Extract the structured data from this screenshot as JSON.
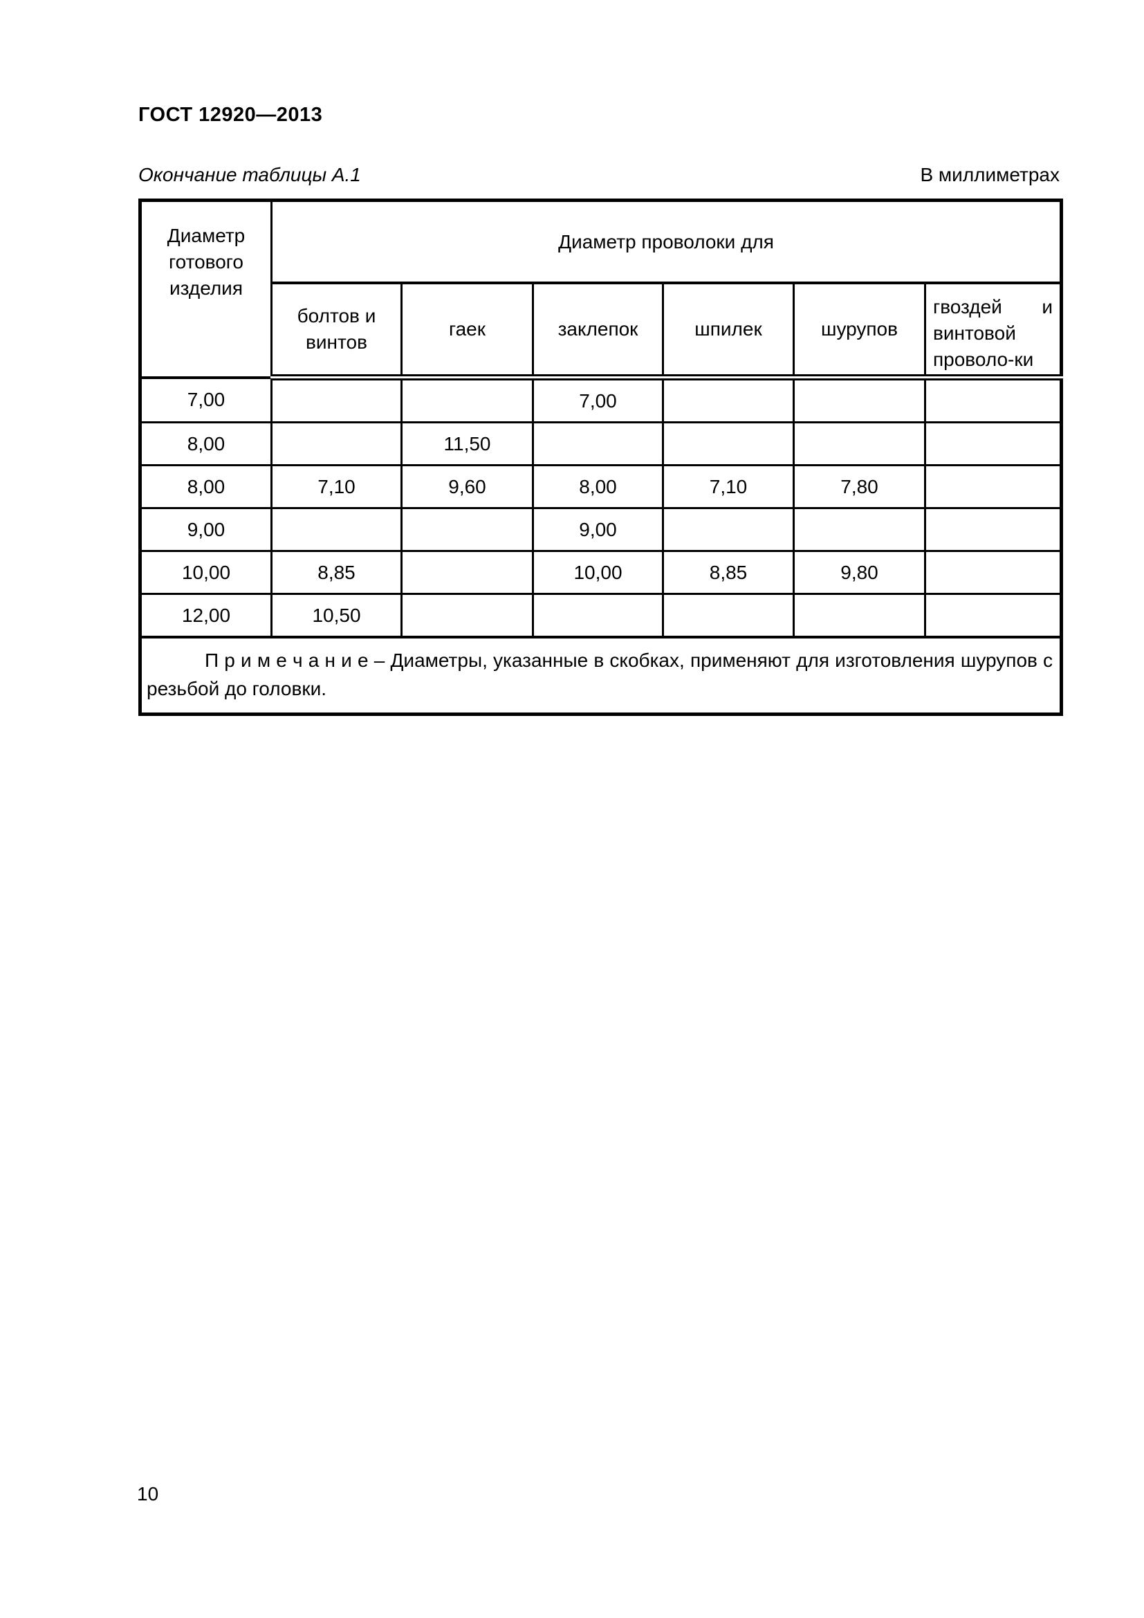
{
  "page": {
    "doc_code": "ГОСТ 12920—2013",
    "table_caption": "Окончание таблицы А.1",
    "units_label": "В миллиметрах",
    "page_number": "10"
  },
  "table": {
    "corner_header": "Диаметр готового изделия",
    "group_header": "Диаметр проволоки для",
    "sub_headers": [
      "болтов и винтов",
      "гаек",
      "заклепок",
      "шпилек",
      "шурупов",
      "гвоздей и винтовой проволо-ки"
    ],
    "rows": [
      [
        "7,00",
        "",
        "",
        "7,00",
        "",
        "",
        ""
      ],
      [
        "8,00",
        "",
        "11,50",
        "",
        "",
        "",
        ""
      ],
      [
        "8,00",
        "7,10",
        "9,60",
        "8,00",
        "7,10",
        "7,80",
        ""
      ],
      [
        "9,00",
        "",
        "",
        "9,00",
        "",
        "",
        ""
      ],
      [
        "10,00",
        "8,85",
        "",
        "10,00",
        "8,85",
        "9,80",
        ""
      ],
      [
        "12,00",
        "10,50",
        "",
        "",
        "",
        "",
        ""
      ]
    ],
    "note": "П р и м е ч а н и е – Диаметры, указанные в скобках, применяют для изготовления шурупов с резьбой до головки."
  }
}
